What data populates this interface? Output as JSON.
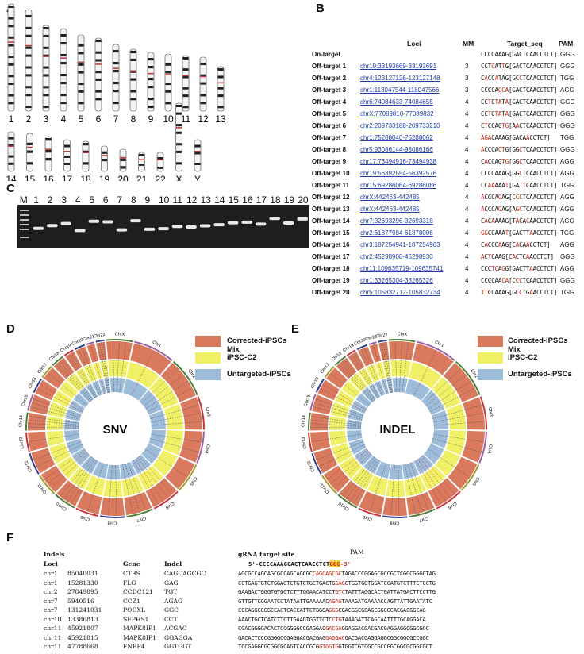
{
  "panels": {
    "A": "A",
    "B": "B",
    "C": "C",
    "D": "D",
    "E": "E",
    "F": "F"
  },
  "karyotype": {
    "row1": [
      "1",
      "2",
      "3",
      "4",
      "5",
      "6",
      "7",
      "8",
      "9",
      "10",
      "11",
      "12",
      "13"
    ],
    "row2": [
      "14",
      "15",
      "16",
      "17",
      "18",
      "19",
      "20",
      "21",
      "22",
      "X",
      "Y"
    ]
  },
  "gel": {
    "lanes": [
      "M",
      "1",
      "2",
      "3",
      "4",
      "5",
      "6",
      "7",
      "8",
      "9",
      "10",
      "11",
      "12",
      "13",
      "14",
      "15",
      "16",
      "17",
      "18",
      "19",
      "20"
    ],
    "band_levels": [
      0.55,
      0.45,
      0.38,
      0.62,
      0.3,
      0.32,
      0.6,
      0.28,
      0.58,
      0.56,
      0.48,
      0.5,
      0.46,
      0.42,
      0.35,
      0.33,
      0.4,
      0.2,
      0.36,
      0.22
    ]
  },
  "tableB": {
    "headers": {
      "loci": "Loci",
      "mm": "MM",
      "target": "Target_seq",
      "pam": "PAM"
    },
    "ontarget": {
      "name": "On-target",
      "seq": "CCCCAAAG[GACTCAACCTCT]",
      "pam": "GGG"
    },
    "rows": [
      {
        "name": "Off-target 1",
        "loci": "chr19:33193669-33193691",
        "mm": "3",
        "seq": "CCTCATTG[GACTCAACCTCT]",
        "red": [
          3,
          6
        ],
        "pam": "GGG"
      },
      {
        "name": "Off-target 2",
        "loci": "chr4:123127126-123127148",
        "mm": "3",
        "seq": "CACCATAG[GCCTCAACCTCT]",
        "red": [
          1,
          4,
          10
        ],
        "pam": "TGG"
      },
      {
        "name": "Off-target 3",
        "loci": "chr1:118047544-118047566",
        "mm": "3",
        "seq": "CCCCAGCA[GACTCAACCTCT]",
        "red": [
          5,
          6,
          7
        ],
        "pam": "AGG"
      },
      {
        "name": "Off-target 4",
        "loci": "chr6:74084633-74084655",
        "mm": "4",
        "seq": "CCTCTATA[GACTCAACCTCT]",
        "red": [
          2,
          4,
          5,
          7
        ],
        "pam": "GGG"
      },
      {
        "name": "Off-target 5",
        "loci": "chrX:77089810-77089832",
        "mm": "4",
        "seq": "CCTCTATA[GACTCAACCTCT]",
        "red": [
          2,
          4,
          5,
          7
        ],
        "pam": "GGG"
      },
      {
        "name": "Off-target 6",
        "loci": "chr2:209733188-209733210",
        "mm": "4",
        "seq": "CTCCAGTG[AACTCAACCTCT]",
        "red": [
          1,
          6,
          7,
          9
        ],
        "pam": "GGG"
      },
      {
        "name": "Off-target 7",
        "loci": "chr1:75288040-75288062",
        "mm": "4",
        "seq": "AGACAAAG[GACAACCTCT]",
        "red": [
          0,
          1,
          2,
          12
        ],
        "pam": "TGG"
      },
      {
        "name": "Off-target 8",
        "loci": "chr5:93086144-93086166",
        "mm": "4",
        "seq": "ACCCACTG[GGCTCAACCTCT]",
        "red": [
          0,
          5,
          6,
          10
        ],
        "pam": "GGG"
      },
      {
        "name": "Off-target 9",
        "loci": "chr17:73494916-73494938",
        "mm": "4",
        "seq": "CACCAGTG[GGCTCAACCTCT]",
        "red": [
          1,
          6,
          7,
          10
        ],
        "pam": "AGG"
      },
      {
        "name": "Off-target 10",
        "loci": "chr19:56392554-56392576",
        "mm": "4",
        "seq": "CCCCAAAG[GGCTCAACCTCT]",
        "red": [
          10
        ],
        "pam": "AGG"
      },
      {
        "name": "Off-target 11",
        "loci": "chr15:69286064-69286086",
        "mm": "4",
        "seq": "CCAAAAAT[GATTCAACCTCT]",
        "red": [
          2,
          3,
          7,
          11
        ],
        "pam": "TGG"
      },
      {
        "name": "Off-target 12",
        "loci": "chrX:442463-442485",
        "mm": "4",
        "seq": "ACCCAGAG[CCCTCAACCTCT]",
        "red": [
          0,
          5,
          9,
          10
        ],
        "pam": "AGG"
      },
      {
        "name": "Off-target 13",
        "loci": "chrX:442463-442485",
        "mm": "4",
        "seq": "ACCCAGAG[AGCTCAACCTCT]",
        "red": [
          0,
          5,
          9,
          10
        ],
        "pam": "AGG"
      },
      {
        "name": "Off-target 14",
        "loci": "chr7:32693296-32693318",
        "mm": "4",
        "seq": "CACAAAAG[TACACAACCTCT]",
        "red": [
          1,
          3,
          9,
          12
        ],
        "pam": "AGG"
      },
      {
        "name": "Off-target 15",
        "loci": "chr2:61877984-61878006",
        "mm": "4",
        "seq": "GGCCAAAT[GACTTAACCTCT]",
        "red": [
          0,
          1,
          7,
          13
        ],
        "pam": "TGG"
      },
      {
        "name": "Off-target 16",
        "loci": "chr3:187254941-187254963",
        "mm": "4",
        "seq": "CACCCAAG[CACAACCTCT]",
        "red": [
          1,
          5,
          9,
          12
        ],
        "pam": "AGG"
      },
      {
        "name": "Off-target 17",
        "loci": "chr2:45298908-45298930",
        "mm": "4",
        "seq": "ACTCAAG[CACTCAACCTCT]",
        "red": [
          0,
          2,
          8,
          12
        ],
        "pam": "GGG"
      },
      {
        "name": "Off-target 18",
        "loci": "chr11:109635719-109635741",
        "mm": "4",
        "seq": "CCCTCAGG[GACTTAACCTCT]",
        "red": [
          3,
          4,
          6,
          13
        ],
        "pam": "AGG"
      },
      {
        "name": "Off-target 19",
        "loci": "chr1:33265304-33265326",
        "mm": "4",
        "seq": "CCCCAACA[CCCTCAACCTCT]",
        "red": [
          6,
          7,
          9,
          10
        ],
        "pam": "GGG"
      },
      {
        "name": "Off-target 20",
        "loci": "chr5:105832712-105832734",
        "mm": "4",
        "seq": "TTCCAAAG[GCCTGAACCTCT]",
        "red": [
          0,
          1,
          10,
          13
        ],
        "pam": "TGG"
      }
    ]
  },
  "circos": {
    "legend": [
      "Corrected-iPSCs Mix",
      "iPSC-C2",
      "Untargeted-iPSCs"
    ],
    "colors": {
      "outer": "#d97a5e",
      "middle": "#eff065",
      "inner": "#9dbcd9"
    },
    "chromosomes": [
      "Chr1",
      "Chr2",
      "Chr3",
      "Chr4",
      "Chr5",
      "Chr6",
      "Chr7",
      "Chr8",
      "Chr9",
      "Chr10",
      "Chr11",
      "Chr12",
      "Chr13",
      "Chr14",
      "Chr15",
      "Chr16",
      "Chr17",
      "Chr18",
      "Chr19",
      "Chr20",
      "Chr21",
      "Chr22",
      "ChrX"
    ],
    "sizes": [
      248,
      242,
      198,
      190,
      181,
      171,
      159,
      145,
      138,
      134,
      135,
      133,
      114,
      107,
      102,
      90,
      83,
      80,
      59,
      64,
      47,
      51,
      156
    ],
    "chr_colors": [
      "#9b5fa6",
      "#4c7f3a",
      "#c8323a",
      "#9b5fa6",
      "#9c9c2e",
      "#c8323a",
      "#4c7f3a",
      "#2f3d8f",
      "#c8323a",
      "#4c7f3a",
      "#9c9c2e",
      "#2f3d8f",
      "#c8323a",
      "#4c7f3a",
      "#9b5fa6",
      "#2f3d8f",
      "#9c9c2e",
      "#4c7f3a",
      "#c8323a",
      "#2f3d8f",
      "#9b5fa6",
      "#2f3d8f",
      "#4c7f3a"
    ],
    "snv_label": "SNV",
    "indel_label": "INDEL"
  },
  "tableF": {
    "title": "Indels",
    "headers": {
      "loci": "Loci",
      "gene": "Gene",
      "indel": "Indel"
    },
    "grna_label": "gRNA target site",
    "pam_label": "PAM",
    "grna_prefix": "5'-CCCCAAAGGACTCAACCTCT",
    "grna_pam": "GGG",
    "grna_suffix": "-3'",
    "rows": [
      {
        "chr": "chr1",
        "pos": "85040031",
        "gene": "CTBS",
        "indel": "CAGCAGCGC",
        "seq": "AGCGCCAGCAGCGCCAGCAGCGCCAGCAGCGCTAGACCCGGAGCGCCGCTCGGCGGGCTAG",
        "red": [
          23,
          31
        ]
      },
      {
        "chr": "chr1",
        "pos": "15281330",
        "gene": "FLG",
        "indel": "GAG",
        "seq": "CCTGAGTGTCTGGAGTCTGTCTGCTGACTGGAGCTGGTGGTGGATCCATGTCTTTCTCCTG",
        "red": [
          30,
          32
        ]
      },
      {
        "chr": "chr2",
        "pos": "27849895",
        "gene": "CCDC121",
        "indel": "TGT",
        "seq": "GAAGACTGGGTGTGGTCTTTGGAACATCCTGTCTATTTAGGCACTGATTATGACTTCCTTG",
        "red": [
          30,
          32
        ]
      },
      {
        "chr": "chr7",
        "pos": "5940516",
        "gene": "CCZ1",
        "indel": "AGAG",
        "seq": "GTTGTTCGGAATCCTATAATTGAAAAACAGAGTAAAGATGAAAACCAGTTATTGAATATC",
        "red": [
          28,
          31
        ]
      },
      {
        "chr": "chr7",
        "pos": "131241031",
        "gene": "PODXL",
        "indel": "GGC",
        "seq": "CCCAGGCCGGCCACTCACCATTCTGGGAGGGCGACGGCGCAGCGGCGCACGACGGCAG",
        "red": [
          28,
          30
        ]
      },
      {
        "chr": "chr10",
        "pos": "13386813",
        "gene": "SEPHS1",
        "indel": "CCT",
        "seq": "AAACTGCTCATCTTCTTGAAGTGGTTCTCCTGTAAAGATTCAGCAATTTTGCAGGACA",
        "red": [
          29,
          31
        ]
      },
      {
        "chr": "chr11",
        "pos": "45921807",
        "gene": "MAPK8IP1",
        "indel": "ACGAC",
        "seq": "CGACGGGGACACTCCGGGGCCGAGGACGACGAGGAGGACGACGACGAGGAGGCGGCGGC",
        "red": [
          27,
          31
        ]
      },
      {
        "chr": "chr11",
        "pos": "45921815",
        "gene": "MAPK8IP1",
        "indel": "GGAGGA",
        "seq": "GACACTCCCGGGGCCGAGGACGACGAGGAGGACGACGACGAGGAGGCGGCGGCGCCGGC",
        "red": [
          27,
          32
        ]
      },
      {
        "chr": "chr11",
        "pos": "47788668",
        "gene": "FNBP4",
        "indel": "GGTGGT",
        "seq": "TCCGAGGCGCGGCGCAGTCACCGCGGTGGTGGTGGTCGTCGCCGCCGGCGGCGCGGCGCT",
        "red": [
          25,
          30
        ]
      }
    ]
  }
}
